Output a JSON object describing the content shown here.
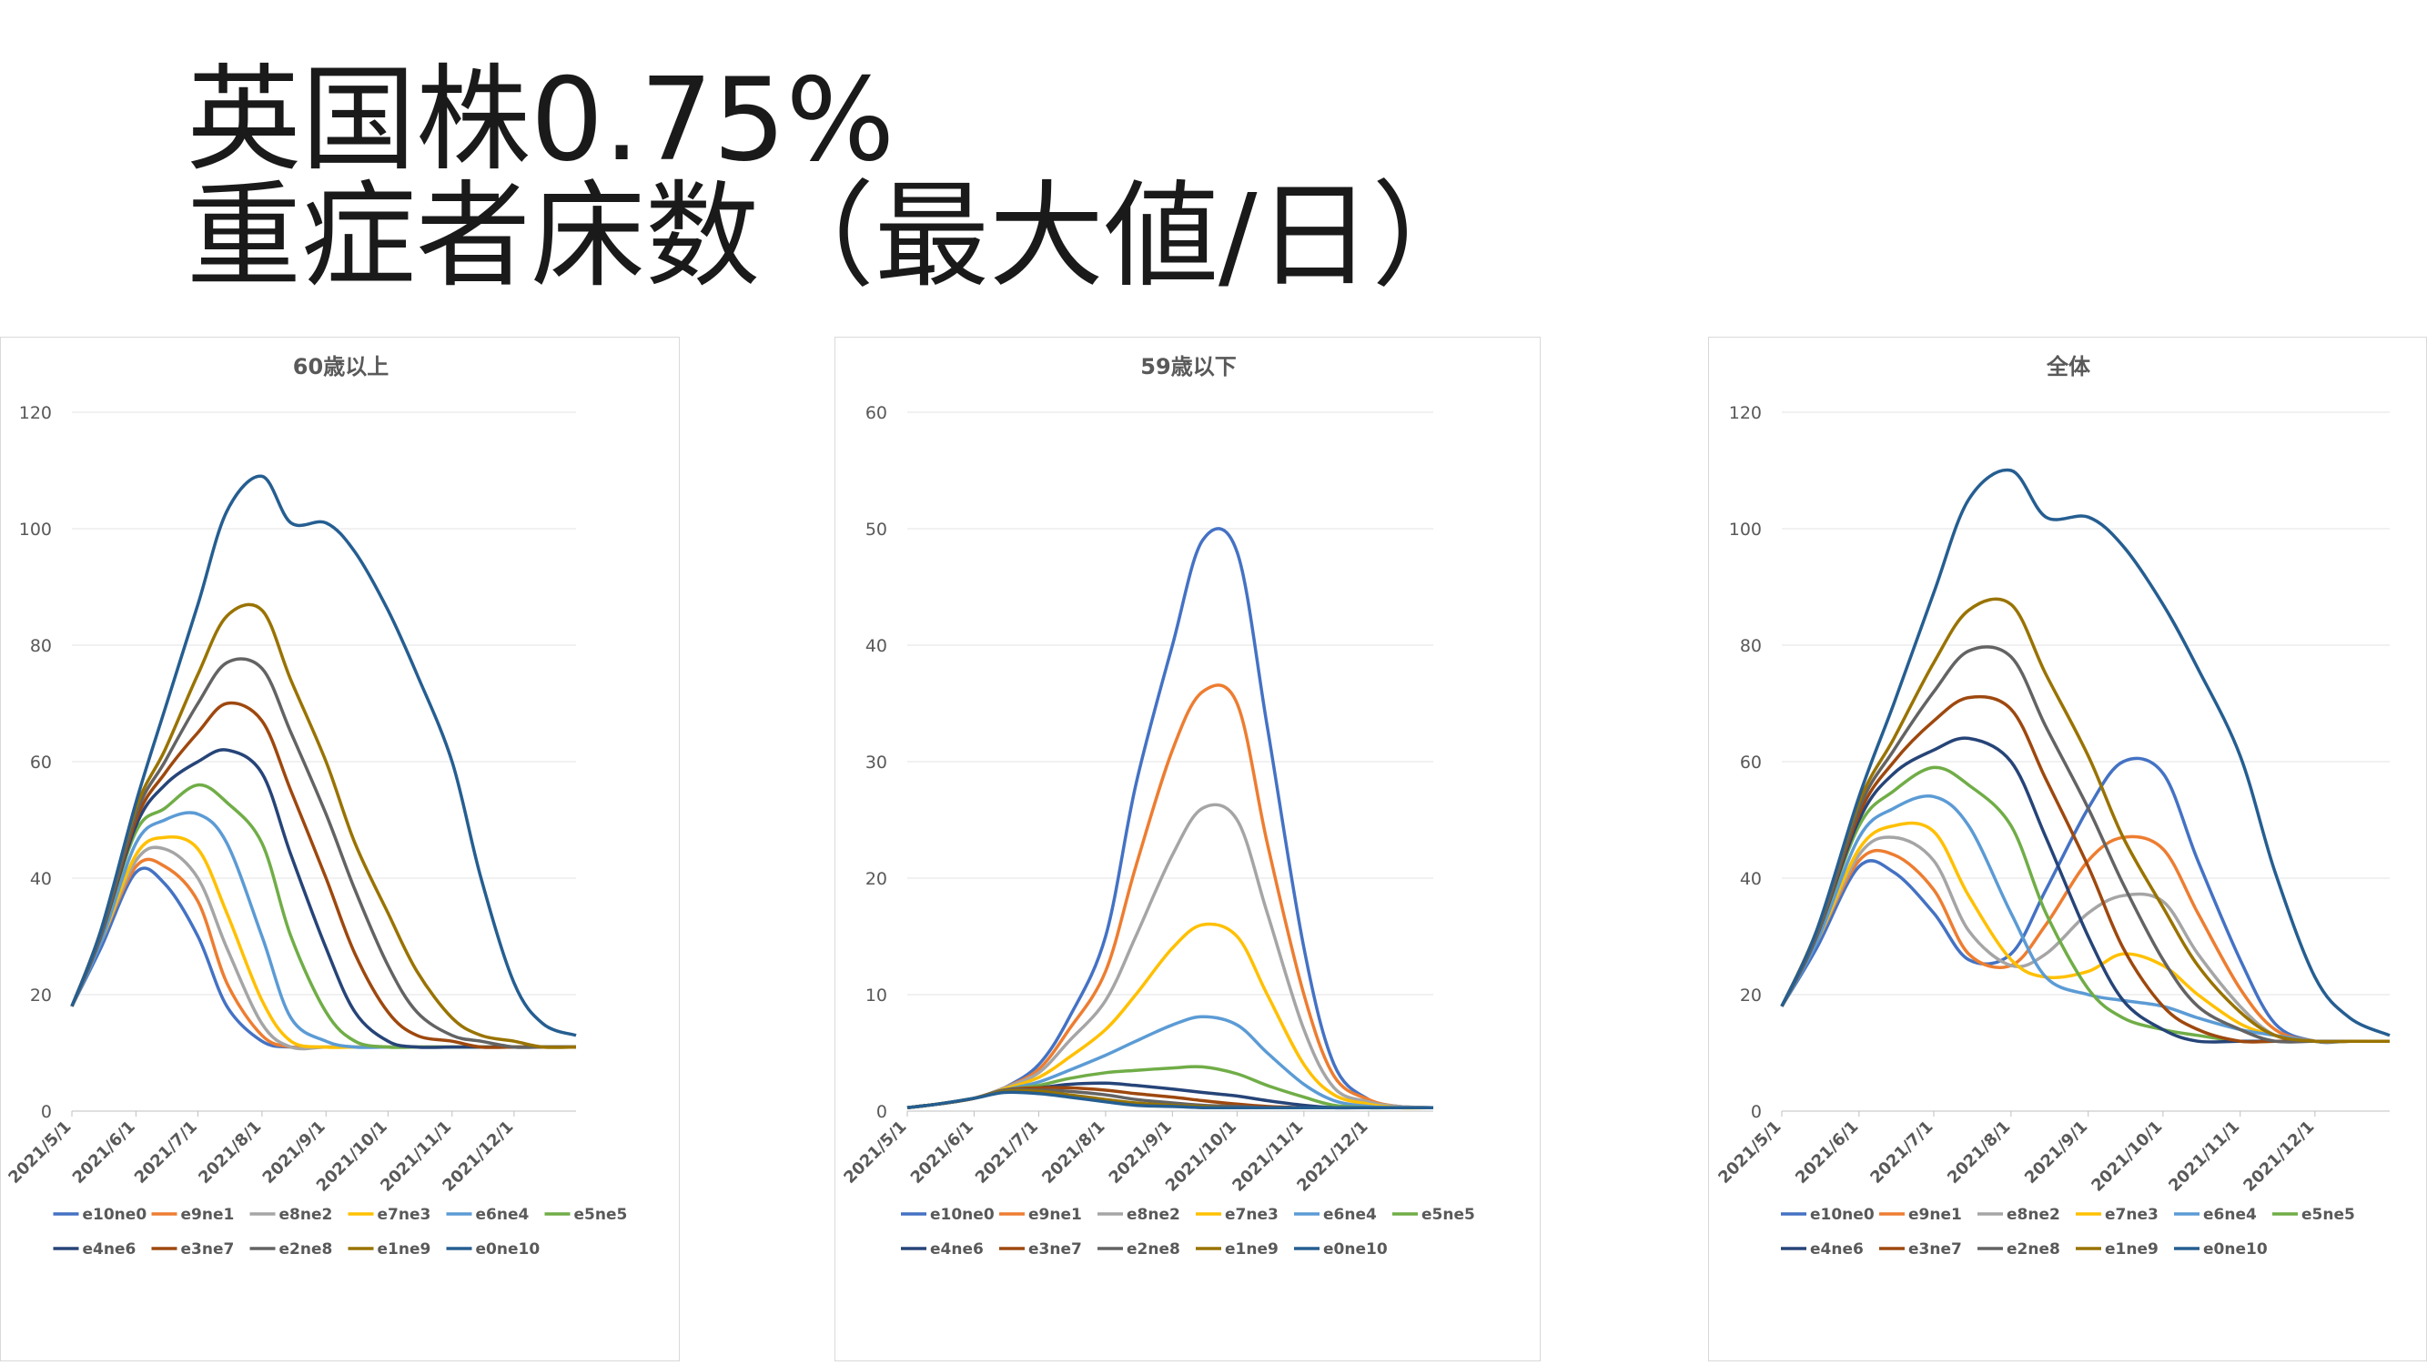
{
  "slide": {
    "title_line1": "英国株0.75%",
    "title_line2": "重症者床数（最大値/日）"
  },
  "chart_data": [
    {
      "type": "line",
      "title": "60歳以上",
      "ylim": [
        0,
        120
      ],
      "yticks": [
        0,
        20,
        40,
        60,
        80,
        100,
        120
      ],
      "grid": true,
      "legend": "bottom",
      "x_tick_labels": [
        "2021/5/1",
        "2021/6/1",
        "2021/7/1",
        "2021/8/1",
        "2021/9/1",
        "2021/10/1",
        "2021/11/1",
        "2021/12/1"
      ],
      "x": [
        "2021-05-01",
        "2021-05-15",
        "2021-06-01",
        "2021-06-15",
        "2021-07-01",
        "2021-07-15",
        "2021-08-01",
        "2021-08-15",
        "2021-09-01",
        "2021-09-15",
        "2021-10-01",
        "2021-10-15",
        "2021-11-01",
        "2021-11-15",
        "2021-12-01",
        "2021-12-15",
        "2021-12-31"
      ],
      "series": [
        {
          "name": "e10ne0",
          "color": "#4472C4",
          "values": [
            18,
            28,
            41,
            39,
            30,
            18,
            12,
            11,
            11,
            11,
            11,
            11,
            11,
            11,
            11,
            11,
            11
          ]
        },
        {
          "name": "e9ne1",
          "color": "#ED7D31",
          "values": [
            18,
            29,
            42,
            42,
            36,
            22,
            13,
            11,
            11,
            11,
            11,
            11,
            11,
            11,
            11,
            11,
            11
          ]
        },
        {
          "name": "e8ne2",
          "color": "#A5A5A5",
          "values": [
            18,
            29,
            43,
            45,
            40,
            28,
            15,
            11,
            11,
            11,
            11,
            11,
            11,
            11,
            11,
            11,
            11
          ]
        },
        {
          "name": "e7ne3",
          "color": "#FFC000",
          "values": [
            18,
            29,
            44,
            47,
            45,
            34,
            19,
            12,
            11,
            11,
            11,
            11,
            11,
            11,
            11,
            11,
            11
          ]
        },
        {
          "name": "e6ne4",
          "color": "#5B9BD5",
          "values": [
            18,
            29,
            46,
            50,
            51,
            46,
            30,
            16,
            12,
            11,
            11,
            11,
            11,
            11,
            11,
            11,
            11
          ]
        },
        {
          "name": "e5ne5",
          "color": "#70AD47",
          "values": [
            18,
            30,
            48,
            52,
            56,
            53,
            46,
            30,
            17,
            12,
            11,
            11,
            11,
            11,
            11,
            11,
            11
          ]
        },
        {
          "name": "e4ne6",
          "color": "#264478",
          "values": [
            18,
            30,
            49,
            56,
            60,
            62,
            58,
            44,
            28,
            17,
            12,
            11,
            11,
            11,
            11,
            11,
            11
          ]
        },
        {
          "name": "e3ne7",
          "color": "#9E480E",
          "values": [
            18,
            30,
            50,
            58,
            65,
            70,
            67,
            55,
            40,
            27,
            17,
            13,
            12,
            11,
            11,
            11,
            11
          ]
        },
        {
          "name": "e2ne8",
          "color": "#636363",
          "values": [
            18,
            30,
            51,
            60,
            70,
            77,
            76,
            65,
            51,
            38,
            25,
            17,
            13,
            12,
            11,
            11,
            11
          ]
        },
        {
          "name": "e1ne9",
          "color": "#997300",
          "values": [
            18,
            31,
            52,
            62,
            75,
            85,
            86,
            74,
            60,
            46,
            34,
            24,
            16,
            13,
            12,
            11,
            11
          ]
        },
        {
          "name": "e0ne10",
          "color": "#255E91",
          "values": [
            18,
            31,
            53,
            69,
            87,
            103,
            109,
            101,
            101,
            96,
            86,
            75,
            60,
            40,
            22,
            15,
            13
          ]
        }
      ]
    },
    {
      "type": "line",
      "title": "59歳以下",
      "ylim": [
        0,
        60
      ],
      "yticks": [
        0,
        10,
        20,
        30,
        40,
        50,
        60
      ],
      "grid": true,
      "legend": "bottom",
      "x_tick_labels": [
        "2021/5/1",
        "2021/6/1",
        "2021/7/1",
        "2021/8/1",
        "2021/9/1",
        "2021/10/1",
        "2021/11/1",
        "2021/12/1"
      ],
      "x": [
        "2021-05-01",
        "2021-05-15",
        "2021-06-01",
        "2021-06-15",
        "2021-07-01",
        "2021-07-15",
        "2021-08-01",
        "2021-08-15",
        "2021-09-01",
        "2021-09-15",
        "2021-10-01",
        "2021-10-15",
        "2021-11-01",
        "2021-11-15",
        "2021-12-01",
        "2021-12-15",
        "2021-12-31"
      ],
      "series": [
        {
          "name": "e10ne0",
          "color": "#4472C4",
          "values": [
            0.3,
            0.6,
            1.1,
            2,
            4,
            8,
            15,
            28,
            40,
            49,
            48,
            33,
            14,
            4,
            1,
            0.4,
            0.3
          ]
        },
        {
          "name": "e9ne1",
          "color": "#ED7D31",
          "values": [
            0.3,
            0.6,
            1.1,
            2,
            3.6,
            7,
            12,
            21,
            31,
            36,
            35,
            23,
            10,
            3,
            1,
            0.4,
            0.3
          ]
        },
        {
          "name": "e8ne2",
          "color": "#A5A5A5",
          "values": [
            0.3,
            0.6,
            1.1,
            2,
            3.3,
            6,
            9.5,
            15,
            22,
            26,
            25,
            17,
            7,
            2,
            0.8,
            0.4,
            0.3
          ]
        },
        {
          "name": "e7ne3",
          "color": "#FFC000",
          "values": [
            0.3,
            0.6,
            1.1,
            1.9,
            2.9,
            4.6,
            7,
            10,
            14,
            16,
            15,
            10,
            4,
            1.4,
            0.6,
            0.3,
            0.3
          ]
        },
        {
          "name": "e6ne4",
          "color": "#5B9BD5",
          "values": [
            0.3,
            0.6,
            1.1,
            1.8,
            2.5,
            3.5,
            4.8,
            6,
            7.4,
            8.1,
            7.4,
            5,
            2.3,
            0.9,
            0.4,
            0.3,
            0.3
          ]
        },
        {
          "name": "e5ne5",
          "color": "#70AD47",
          "values": [
            0.3,
            0.6,
            1.1,
            1.8,
            2.2,
            2.8,
            3.3,
            3.5,
            3.7,
            3.8,
            3.2,
            2.2,
            1.2,
            0.5,
            0.3,
            0.3,
            0.3
          ]
        },
        {
          "name": "e4ne6",
          "color": "#264478",
          "values": [
            0.3,
            0.6,
            1.1,
            1.8,
            2,
            2.3,
            2.4,
            2.2,
            1.9,
            1.6,
            1.3,
            0.9,
            0.5,
            0.3,
            0.3,
            0.3,
            0.3
          ]
        },
        {
          "name": "e3ne7",
          "color": "#9E480E",
          "values": [
            0.3,
            0.6,
            1.1,
            1.8,
            2,
            2,
            1.8,
            1.5,
            1.2,
            0.9,
            0.6,
            0.4,
            0.3,
            0.3,
            0.3,
            0.3,
            0.3
          ]
        },
        {
          "name": "e2ne8",
          "color": "#636363",
          "values": [
            0.3,
            0.6,
            1.1,
            1.8,
            1.8,
            1.7,
            1.4,
            1,
            0.7,
            0.5,
            0.4,
            0.3,
            0.3,
            0.3,
            0.3,
            0.3,
            0.3
          ]
        },
        {
          "name": "e1ne9",
          "color": "#997300",
          "values": [
            0.3,
            0.6,
            1.1,
            1.7,
            1.7,
            1.4,
            1,
            0.7,
            0.5,
            0.4,
            0.3,
            0.3,
            0.3,
            0.3,
            0.3,
            0.3,
            0.3
          ]
        },
        {
          "name": "e0ne10",
          "color": "#255E91",
          "values": [
            0.3,
            0.6,
            1.1,
            1.6,
            1.5,
            1.2,
            0.8,
            0.5,
            0.4,
            0.3,
            0.3,
            0.3,
            0.3,
            0.3,
            0.3,
            0.3,
            0.3
          ]
        }
      ]
    },
    {
      "type": "line",
      "title": "全体",
      "ylim": [
        0,
        120
      ],
      "yticks": [
        0,
        20,
        40,
        60,
        80,
        100,
        120
      ],
      "grid": true,
      "legend": "bottom",
      "x_tick_labels": [
        "2021/5/1",
        "2021/6/1",
        "2021/7/1",
        "2021/8/1",
        "2021/9/1",
        "2021/10/1",
        "2021/11/1",
        "2021/12/1"
      ],
      "x": [
        "2021-05-01",
        "2021-05-15",
        "2021-06-01",
        "2021-06-15",
        "2021-07-01",
        "2021-07-15",
        "2021-08-01",
        "2021-08-15",
        "2021-09-01",
        "2021-09-15",
        "2021-10-01",
        "2021-10-15",
        "2021-11-01",
        "2021-11-15",
        "2021-12-01",
        "2021-12-15",
        "2021-12-31"
      ],
      "series": [
        {
          "name": "e10ne0",
          "color": "#4472C4",
          "values": [
            18,
            28,
            42,
            41,
            34,
            26,
            27,
            38,
            52,
            60,
            58,
            43,
            26,
            15,
            12,
            12,
            12
          ]
        },
        {
          "name": "e9ne1",
          "color": "#ED7D31",
          "values": [
            18,
            29,
            43,
            44,
            38,
            27,
            25,
            32,
            43,
            47,
            45,
            34,
            21,
            14,
            12,
            12,
            12
          ]
        },
        {
          "name": "e8ne2",
          "color": "#A5A5A5",
          "values": [
            18,
            29,
            44,
            47,
            43,
            31,
            25,
            27,
            34,
            37,
            36,
            27,
            18,
            13,
            12,
            12,
            12
          ]
        },
        {
          "name": "e7ne3",
          "color": "#FFC000",
          "values": [
            18,
            29,
            45,
            49,
            48,
            37,
            26,
            23,
            24,
            27,
            25,
            20,
            15,
            13,
            12,
            12,
            12
          ]
        },
        {
          "name": "e6ne4",
          "color": "#5B9BD5",
          "values": [
            18,
            29,
            47,
            52,
            54,
            49,
            34,
            23,
            20,
            19,
            18,
            16,
            14,
            13,
            12,
            12,
            12
          ]
        },
        {
          "name": "e5ne5",
          "color": "#70AD47",
          "values": [
            18,
            30,
            49,
            55,
            59,
            56,
            49,
            34,
            21,
            16,
            14,
            13,
            12,
            12,
            12,
            12,
            12
          ]
        },
        {
          "name": "e4ne6",
          "color": "#264478",
          "values": [
            18,
            30,
            50,
            58,
            62,
            64,
            60,
            47,
            30,
            19,
            14,
            12,
            12,
            12,
            12,
            12,
            12
          ]
        },
        {
          "name": "e3ne7",
          "color": "#9E480E",
          "values": [
            18,
            30,
            51,
            60,
            67,
            71,
            69,
            57,
            42,
            28,
            18,
            14,
            12,
            12,
            12,
            12,
            12
          ]
        },
        {
          "name": "e2ne8",
          "color": "#636363",
          "values": [
            18,
            30,
            52,
            62,
            72,
            79,
            78,
            66,
            52,
            39,
            26,
            18,
            14,
            12,
            12,
            12,
            12
          ]
        },
        {
          "name": "e1ne9",
          "color": "#997300",
          "values": [
            18,
            31,
            53,
            64,
            77,
            86,
            87,
            75,
            61,
            47,
            35,
            25,
            17,
            13,
            12,
            12,
            12
          ]
        },
        {
          "name": "e0ne10",
          "color": "#255E91",
          "values": [
            18,
            31,
            54,
            70,
            89,
            105,
            110,
            102,
            102,
            97,
            87,
            76,
            61,
            41,
            23,
            16,
            13
          ]
        }
      ]
    }
  ]
}
